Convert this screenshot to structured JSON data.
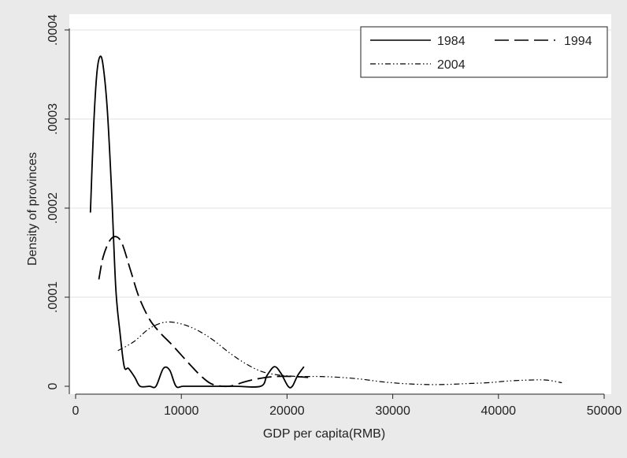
{
  "chart_data": {
    "type": "line",
    "title": "",
    "xlabel": "GDP per capita(RMB)",
    "ylabel": "Density of provinces",
    "xlim": [
      0,
      50000
    ],
    "ylim": [
      0,
      0.0004
    ],
    "x_ticks": [
      0,
      10000,
      20000,
      30000,
      40000,
      50000
    ],
    "x_tick_labels": [
      "0",
      "10000",
      "20000",
      "30000",
      "40000",
      "50000"
    ],
    "y_ticks": [
      0,
      0.0001,
      0.0002,
      0.0003,
      0.0004
    ],
    "y_tick_labels": [
      "0",
      ".0001",
      ".0002",
      ".0003",
      ".0004"
    ],
    "grid": "horizontal",
    "legend_position": "top-right",
    "series": [
      {
        "name": "1984",
        "dash": "solid",
        "color": "#000000",
        "x": [
          1400,
          1700,
          2000,
          2300,
          2600,
          3000,
          3400,
          3800,
          4200,
          4600,
          5000,
          5600,
          6100,
          7000,
          7600,
          8300,
          8900,
          9500,
          10200,
          12000,
          15000,
          17500,
          18100,
          18800,
          19400,
          20100,
          20500,
          21000,
          21600
        ],
        "y": [
          0.000195,
          0.00029,
          0.00035,
          0.00037,
          0.00036,
          0.00031,
          0.00022,
          0.00011,
          6e-05,
          2.2e-05,
          2e-05,
          1e-05,
          0,
          0,
          0,
          2e-05,
          1.8e-05,
          0,
          0,
          0,
          0,
          0,
          1.2e-05,
          2.2e-05,
          1.5e-05,
          0,
          0,
          1.2e-05,
          2.2e-05
        ]
      },
      {
        "name": "1994",
        "dash": "long-dash",
        "color": "#000000",
        "x": [
          2200,
          2600,
          3200,
          3800,
          4400,
          5200,
          6000,
          7000,
          8000,
          9000,
          10000,
          11000,
          12000,
          13000,
          14500,
          16000,
          17500,
          19000,
          20500,
          22000
        ],
        "y": [
          0.00012,
          0.000145,
          0.000163,
          0.000168,
          0.00016,
          0.00013,
          0.0001,
          7.5e-05,
          6e-05,
          4.8e-05,
          3.5e-05,
          2.2e-05,
          1e-05,
          2e-06,
          0,
          5e-06,
          9e-06,
          1.1e-05,
          1.1e-05,
          1e-05
        ]
      },
      {
        "name": "2004",
        "dash": "dash-dot-dot",
        "color": "#000000",
        "x": [
          4000,
          5500,
          7000,
          8500,
          10000,
          11500,
          13000,
          14500,
          16000,
          17500,
          19000,
          21000,
          23000,
          25000,
          27000,
          29000,
          31000,
          33000,
          35000,
          37000,
          39000,
          41000,
          43000,
          44500,
          46000
        ],
        "y": [
          4e-05,
          5e-05,
          6.5e-05,
          7.2e-05,
          7e-05,
          6.3e-05,
          5.2e-05,
          3.8e-05,
          2.6e-05,
          1.7e-05,
          1.3e-05,
          1.1e-05,
          1.1e-05,
          1e-05,
          8e-06,
          5e-06,
          3e-06,
          2e-06,
          2e-06,
          3e-06,
          4e-06,
          6e-06,
          7e-06,
          7e-06,
          4e-06
        ]
      }
    ]
  }
}
